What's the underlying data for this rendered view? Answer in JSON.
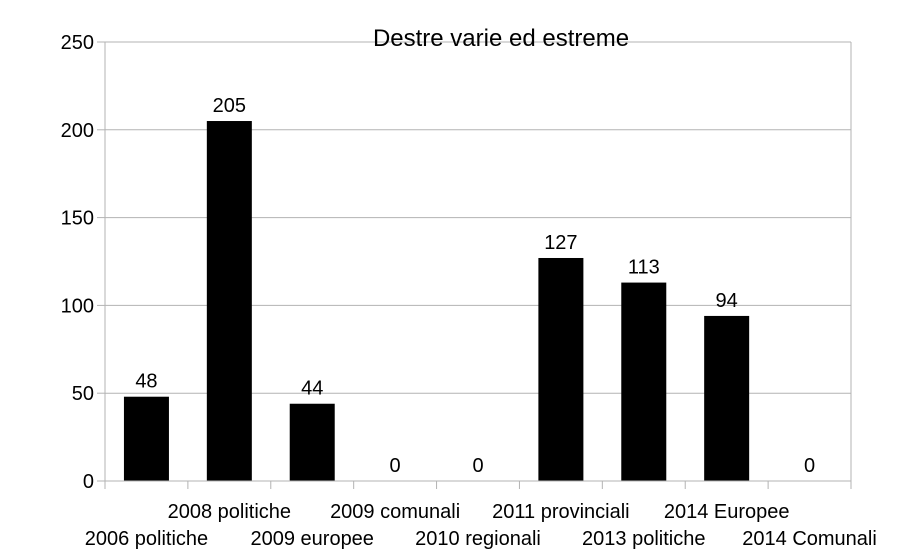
{
  "chart_data": {
    "type": "bar",
    "title": "Destre varie ed estreme",
    "xlabel": "",
    "ylabel": "",
    "categories": [
      "2006 politiche",
      "2008 politiche",
      "2009 europee",
      "2009 comunali",
      "2010 regionali",
      "2011 provinciali",
      "2013 politiche",
      "2014 Europee",
      "2014 Comunali"
    ],
    "values": [
      48,
      205,
      44,
      0,
      0,
      127,
      113,
      94,
      0
    ],
    "ylim": [
      0,
      250
    ],
    "yticks": [
      0,
      50,
      100,
      150,
      200,
      250
    ],
    "grid": true,
    "legend": "none",
    "bar_color": "#000000",
    "grid_color": "#b3b3b3"
  }
}
